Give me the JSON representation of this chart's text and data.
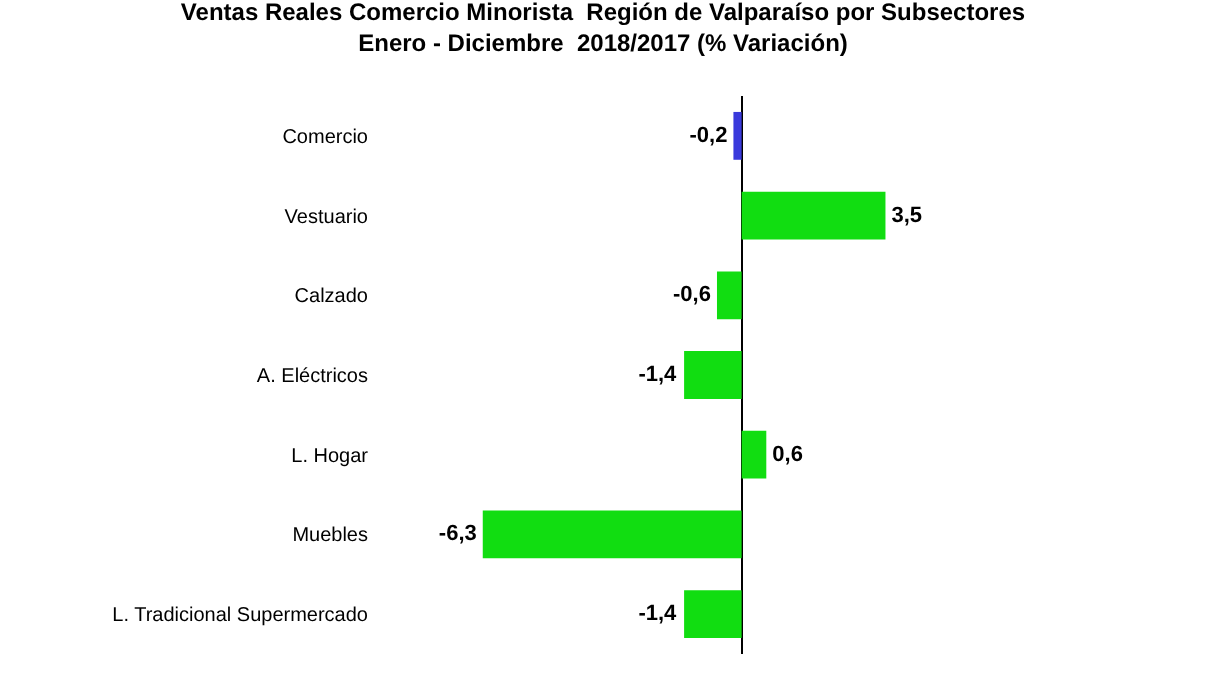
{
  "chart_data": {
    "type": "bar",
    "orientation": "horizontal",
    "title": "Ventas Reales Comercio Minorista  Región de Valparaíso por Subsectores\nEnero - Diciembre  2018/2017 (% Variación)",
    "categories": [
      "Comercio",
      "Vestuario",
      "Calzado",
      "A. Eléctricos",
      "L. Hogar",
      "Muebles",
      "L. Tradicional Supermercado"
    ],
    "values": [
      -0.2,
      3.5,
      -0.6,
      -1.4,
      0.6,
      -6.3,
      -1.4
    ],
    "value_labels": [
      "-0,2",
      "3,5",
      "-0,6",
      "-1,4",
      "0,6",
      "-6,3",
      "-1,4"
    ],
    "colors": [
      "#3a3adc",
      "#11dd11",
      "#11dd11",
      "#11dd11",
      "#11dd11",
      "#11dd11",
      "#11dd11"
    ],
    "legend": false
  }
}
